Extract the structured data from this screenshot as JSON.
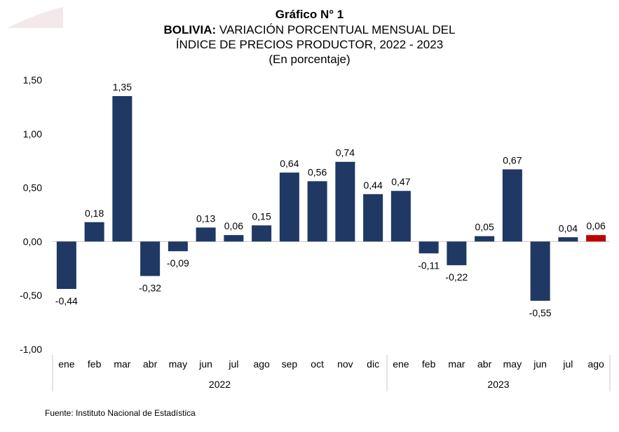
{
  "title": {
    "line1": "Gráfico N° 1",
    "line2_bold": "BOLIVIA:",
    "line2_rest": " VARIACIÓN PORCENTUAL MENSUAL DEL",
    "line3": "ÍNDICE DE PRECIOS PRODUCTOR, 2022 - 2023",
    "line4": "(En porcentaje)"
  },
  "source": "Fuente: Instituto Nacional de Estadística",
  "colors": {
    "bar": "#1f3864",
    "highlight": "#c00000"
  },
  "chart_data": {
    "type": "bar",
    "categories": [
      "ene",
      "feb",
      "mar",
      "abr",
      "may",
      "jun",
      "jul",
      "ago",
      "sep",
      "oct",
      "nov",
      "dic",
      "ene",
      "feb",
      "mar",
      "abr",
      "may",
      "jun",
      "jul",
      "ago"
    ],
    "groups": [
      {
        "label": "2022",
        "start": 0,
        "end": 11
      },
      {
        "label": "2023",
        "start": 12,
        "end": 19
      }
    ],
    "values": [
      -0.44,
      0.18,
      1.35,
      -0.32,
      -0.09,
      0.13,
      0.06,
      0.15,
      0.64,
      0.56,
      0.74,
      0.44,
      0.47,
      -0.11,
      -0.22,
      0.05,
      0.67,
      -0.55,
      0.04,
      0.06
    ],
    "labels": [
      "-0,44",
      "0,18",
      "1,35",
      "-0,32",
      "-0,09",
      "0,13",
      "0,06",
      "0,15",
      "0,64",
      "0,56",
      "0,74",
      "0,44",
      "0,47",
      "-0,11",
      "-0,22",
      "0,05",
      "0,67",
      "-0,55",
      "0,04",
      "0,06"
    ],
    "highlight_index": 19,
    "ylim": [
      -1.0,
      1.5
    ],
    "yticks": [
      1.5,
      1.0,
      0.5,
      0.0,
      -0.5,
      -1.0
    ],
    "ytick_labels": [
      "1,50",
      "1,00",
      "0,50",
      "0,00",
      "-0,50",
      "-1,00"
    ],
    "grid": false
  }
}
